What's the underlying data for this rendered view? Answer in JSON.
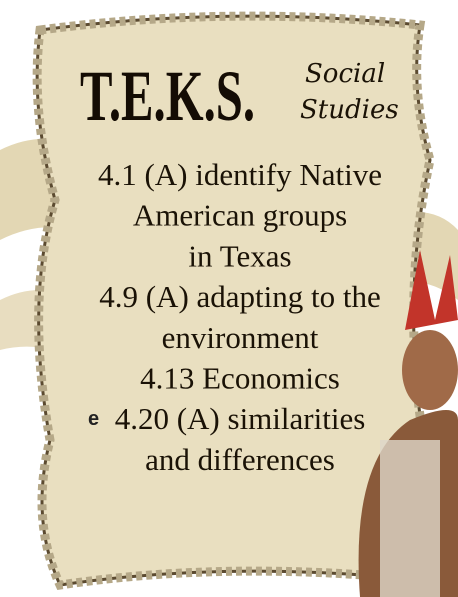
{
  "header": {
    "title": "T.E.K.S.",
    "subject_line1": "Social",
    "subject_line2": "Studies"
  },
  "objectives": [
    "4.1 (A) identify Native",
    "American groups",
    "in Texas",
    "4.9 (A) adapting to the",
    "environment",
    "4.13 Economics",
    "4.20 (A) similarities",
    "and differences"
  ],
  "side_fragment": "e"
}
